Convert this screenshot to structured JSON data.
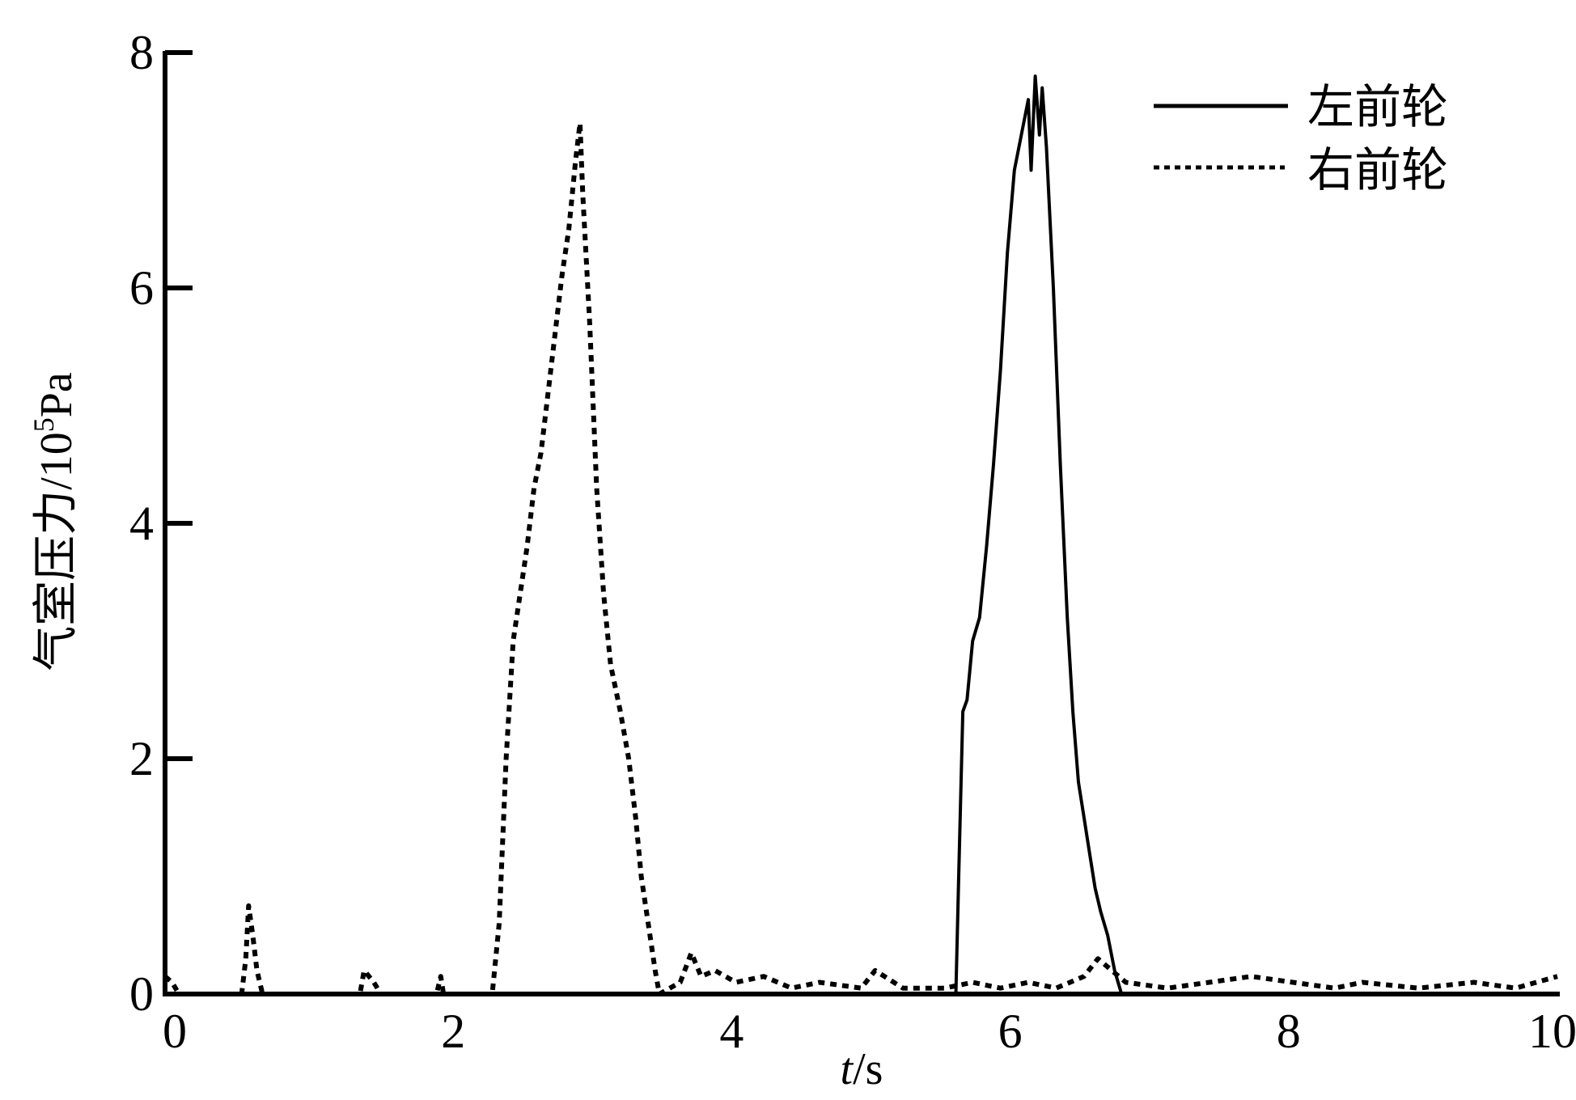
{
  "chart_data": {
    "type": "line",
    "title": "",
    "xlabel": {
      "italic": "t",
      "rest": "/s"
    },
    "ylabel": {
      "main": "气室压力/10",
      "sup": "5",
      "unit": "Pa"
    },
    "xlim": [
      0,
      10
    ],
    "ylim": [
      0,
      8
    ],
    "xticks": [
      "0",
      "2",
      "4",
      "6",
      "8",
      "10"
    ],
    "yticks": [
      "0",
      "2",
      "4",
      "6",
      "8"
    ],
    "grid": false,
    "legend_position": "top-right",
    "colors": {
      "line": "#000000"
    },
    "series": [
      {
        "name": "左前轮",
        "style": "solid",
        "points": [
          [
            0,
            0
          ],
          [
            5.68,
            0
          ],
          [
            5.7,
            1.0
          ],
          [
            5.73,
            2.4
          ],
          [
            5.76,
            2.5
          ],
          [
            5.8,
            3.0
          ],
          [
            5.85,
            3.2
          ],
          [
            5.9,
            3.8
          ],
          [
            5.95,
            4.5
          ],
          [
            6.0,
            5.3
          ],
          [
            6.05,
            6.3
          ],
          [
            6.1,
            7.0
          ],
          [
            6.15,
            7.3
          ],
          [
            6.2,
            7.6
          ],
          [
            6.22,
            7.0
          ],
          [
            6.25,
            7.8
          ],
          [
            6.28,
            7.3
          ],
          [
            6.3,
            7.7
          ],
          [
            6.33,
            7.2
          ],
          [
            6.38,
            6.0
          ],
          [
            6.43,
            4.5
          ],
          [
            6.48,
            3.2
          ],
          [
            6.52,
            2.4
          ],
          [
            6.56,
            1.8
          ],
          [
            6.6,
            1.5
          ],
          [
            6.64,
            1.2
          ],
          [
            6.68,
            0.9
          ],
          [
            6.72,
            0.7
          ],
          [
            6.77,
            0.5
          ],
          [
            6.82,
            0.2
          ],
          [
            6.87,
            0
          ],
          [
            10,
            0
          ]
        ]
      },
      {
        "name": "右前轮",
        "style": "dotted",
        "points": [
          [
            0,
            0.15
          ],
          [
            0.05,
            0.1
          ],
          [
            0.1,
            0
          ],
          [
            0.55,
            0
          ],
          [
            0.58,
            0.3
          ],
          [
            0.6,
            0.75
          ],
          [
            0.63,
            0.5
          ],
          [
            0.66,
            0.2
          ],
          [
            0.7,
            0
          ],
          [
            1.4,
            0
          ],
          [
            1.43,
            0.2
          ],
          [
            1.5,
            0.1
          ],
          [
            1.55,
            0
          ],
          [
            1.95,
            0
          ],
          [
            1.98,
            0.15
          ],
          [
            2.0,
            0
          ],
          [
            2.35,
            0
          ],
          [
            2.4,
            0.6
          ],
          [
            2.45,
            2.0
          ],
          [
            2.5,
            3.0
          ],
          [
            2.55,
            3.4
          ],
          [
            2.6,
            3.8
          ],
          [
            2.65,
            4.3
          ],
          [
            2.7,
            4.6
          ],
          [
            2.75,
            5.1
          ],
          [
            2.8,
            5.6
          ],
          [
            2.85,
            6.1
          ],
          [
            2.9,
            6.5
          ],
          [
            2.95,
            7.1
          ],
          [
            2.98,
            7.4
          ],
          [
            3.0,
            6.8
          ],
          [
            3.05,
            5.7
          ],
          [
            3.1,
            4.3
          ],
          [
            3.15,
            3.4
          ],
          [
            3.2,
            2.8
          ],
          [
            3.27,
            2.4
          ],
          [
            3.33,
            2.0
          ],
          [
            3.38,
            1.5
          ],
          [
            3.42,
            1.0
          ],
          [
            3.47,
            0.6
          ],
          [
            3.52,
            0.2
          ],
          [
            3.55,
            0
          ],
          [
            3.7,
            0.1
          ],
          [
            3.78,
            0.35
          ],
          [
            3.85,
            0.15
          ],
          [
            3.95,
            0.2
          ],
          [
            4.1,
            0.1
          ],
          [
            4.3,
            0.15
          ],
          [
            4.5,
            0.05
          ],
          [
            4.7,
            0.1
          ],
          [
            5.0,
            0.05
          ],
          [
            5.1,
            0.2
          ],
          [
            5.3,
            0.05
          ],
          [
            5.6,
            0.05
          ],
          [
            5.8,
            0.1
          ],
          [
            6.0,
            0.05
          ],
          [
            6.2,
            0.1
          ],
          [
            6.4,
            0.05
          ],
          [
            6.6,
            0.15
          ],
          [
            6.7,
            0.3
          ],
          [
            6.9,
            0.1
          ],
          [
            7.2,
            0.05
          ],
          [
            7.5,
            0.1
          ],
          [
            7.8,
            0.15
          ],
          [
            8.1,
            0.1
          ],
          [
            8.4,
            0.05
          ],
          [
            8.6,
            0.1
          ],
          [
            9.0,
            0.05
          ],
          [
            9.4,
            0.1
          ],
          [
            9.7,
            0.05
          ],
          [
            10,
            0.15
          ]
        ]
      }
    ]
  }
}
